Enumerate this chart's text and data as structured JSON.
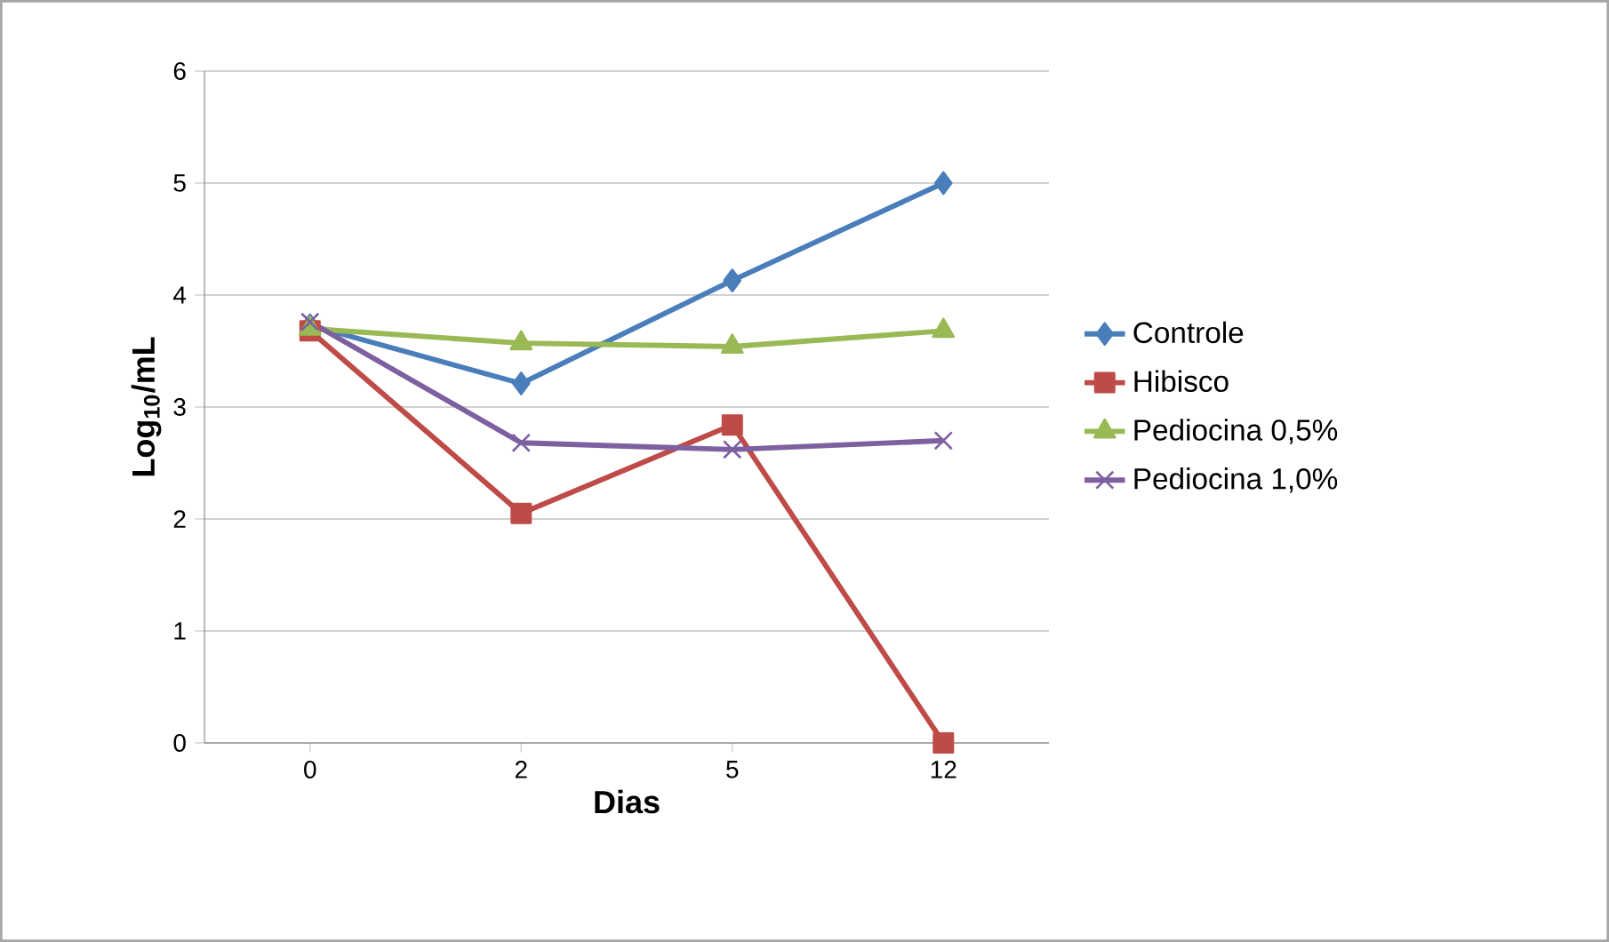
{
  "chart_data": {
    "type": "line",
    "xlabel": "Dias",
    "ylabel": "Log$_{10}$/mL",
    "categories": [
      "0",
      "2",
      "5",
      "12"
    ],
    "series": [
      {
        "name": "Controle",
        "color": "#4a7ebb",
        "marker": "diamond",
        "values": [
          3.73,
          3.21,
          4.13,
          5.0
        ]
      },
      {
        "name": "Hibisco",
        "color": "#be4b48",
        "marker": "square",
        "values": [
          3.68,
          2.05,
          2.84,
          0
        ]
      },
      {
        "name": "Pediocina 0,5%",
        "color": "#98b954",
        "marker": "triangle",
        "values": [
          3.7,
          3.57,
          3.54,
          3.68
        ]
      },
      {
        "name": "Pediocina 1,0%",
        "color": "#7d60a0",
        "marker": "cross",
        "values": [
          3.76,
          2.68,
          2.62,
          2.7
        ]
      }
    ],
    "ylim": [
      0,
      6
    ],
    "yticks": [
      0,
      1,
      2,
      3,
      4,
      5,
      6
    ],
    "grid": "y",
    "legend": "right"
  }
}
